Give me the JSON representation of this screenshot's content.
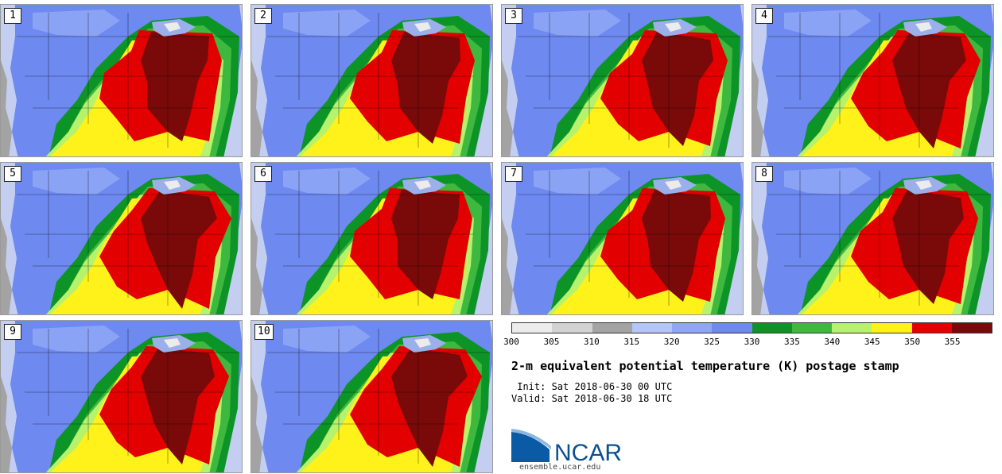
{
  "product": {
    "title": "2-m equivalent potential temperature (K) postage stamp",
    "init": " Init: Sat 2018-06-30 00 UTC",
    "valid": "Valid: Sat 2018-06-30 18 UTC"
  },
  "members": [
    {
      "label": "1"
    },
    {
      "label": "2"
    },
    {
      "label": "3"
    },
    {
      "label": "4"
    },
    {
      "label": "5"
    },
    {
      "label": "6"
    },
    {
      "label": "7"
    },
    {
      "label": "8"
    },
    {
      "label": "9"
    },
    {
      "label": "10"
    }
  ],
  "colorbar": {
    "units": "K",
    "ticks": [
      "300",
      "305",
      "310",
      "315",
      "320",
      "325",
      "330",
      "335",
      "340",
      "345",
      "350",
      "355"
    ],
    "tick_values": [
      300,
      305,
      310,
      315,
      320,
      325,
      330,
      335,
      340,
      345,
      350,
      355
    ],
    "range": [
      300,
      360
    ],
    "bins": [
      {
        "lo": 300,
        "hi": 305,
        "color": "#ececec"
      },
      {
        "lo": 305,
        "hi": 310,
        "color": "#d2d2d2"
      },
      {
        "lo": 310,
        "hi": 315,
        "color": "#a3a3a3"
      },
      {
        "lo": 315,
        "hi": 320,
        "color": "#b3c6f7"
      },
      {
        "lo": 320,
        "hi": 325,
        "color": "#8ea6f5"
      },
      {
        "lo": 325,
        "hi": 330,
        "color": "#6e89ef"
      },
      {
        "lo": 330,
        "hi": 335,
        "color": "#0d9426"
      },
      {
        "lo": 335,
        "hi": 340,
        "color": "#3fb83f"
      },
      {
        "lo": 340,
        "hi": 345,
        "color": "#b6f26b"
      },
      {
        "lo": 345,
        "hi": 350,
        "color": "#fff21a"
      },
      {
        "lo": 350,
        "hi": 355,
        "color": "#e30000"
      },
      {
        "lo": 355,
        "hi": 360,
        "color": "#7a0a0a"
      }
    ]
  },
  "map_colors": {
    "ocean": "#c4cef0",
    "land_low": "#6e89ef",
    "land_mid": "#8ea6f5",
    "green": "#0d9426",
    "lightgreen": "#3fb83f",
    "yellowgreen": "#b6f26b",
    "yellow": "#fff21a",
    "red": "#e30000",
    "darkred": "#7a0a0a",
    "gray": "#a3a3a3",
    "snow": "#ececec"
  },
  "logo": {
    "text": "NCAR",
    "url": "ensemble.ucar.edu",
    "color": "#0a5aa6"
  }
}
